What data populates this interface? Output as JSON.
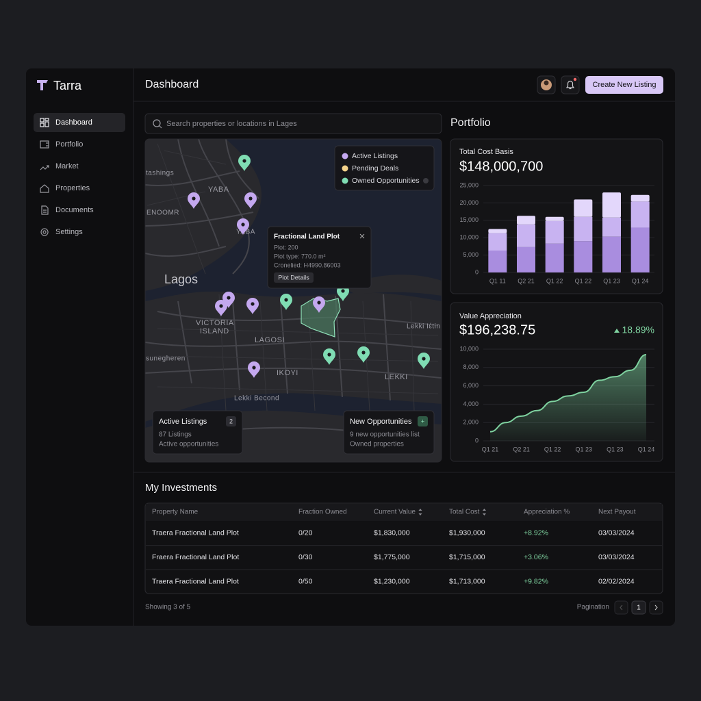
{
  "brand": "Tarra",
  "nav": [
    "Dashboard",
    "Portfolio",
    "Market",
    "Properties",
    "Documents",
    "Settings"
  ],
  "header": {
    "title": "Dashboard",
    "button": "Create New Listing"
  },
  "search": {
    "placeholder": "Search properties or locations in Lages"
  },
  "map": {
    "labels": [
      "tashings",
      "YABA",
      "ENOOMR",
      "YABA",
      "Lagos",
      "VICTORIA",
      "ISLAND",
      "LAGOSI",
      "sunegheren",
      "IKOYI",
      "LEKKI",
      "Lekki Becond",
      "Lekki Ιέtin"
    ],
    "legend": [
      {
        "label": "Active Listings",
        "color": "#c4a8ef"
      },
      {
        "label": "Pending Deals",
        "color": "#f3d28a"
      },
      {
        "label": "Owned Opportunities",
        "color": "#7fdcb3"
      }
    ],
    "popup": {
      "title": "Fractional Land Plot",
      "lines": [
        "Plot: 200",
        "Plot type: 770.0 m²",
        "Cronelied: H4990.86003"
      ],
      "button": "Plot Details"
    },
    "cards": [
      {
        "title": "Active Listings",
        "badge": "2",
        "lines": [
          "87 Listings",
          "Active opportunities"
        ]
      },
      {
        "title": "New Opportunities",
        "badge": "+",
        "lines": [
          "9 new opportunities list",
          "Owned properties"
        ]
      }
    ]
  },
  "portfolio_title": "Portfolio",
  "chart_data": [
    {
      "type": "bar",
      "title": "Total Cost Basis",
      "subtitle": "$148,000,700",
      "categories": [
        "Q1 11",
        "Q2 21",
        "Q1 22",
        "Q1 22",
        "Q1 23",
        "Q1 24"
      ],
      "series": [
        {
          "color": "#a98ddf",
          "values": [
            6300,
            7300,
            8300,
            9000,
            10300,
            12900
          ]
        },
        {
          "color": "#c8b3f1",
          "values": [
            5000,
            6500,
            6500,
            7000,
            5500,
            7500
          ]
        },
        {
          "color": "#e3d7fb",
          "values": [
            1200,
            2500,
            1200,
            5000,
            7200,
            1900
          ]
        }
      ],
      "stacked": true,
      "ylim": [
        0,
        25000
      ],
      "yticks": [
        0,
        {
          "value": 5000,
          "label": "5,000"
        },
        {
          "value": 10000,
          "label": "10,000"
        },
        {
          "value": 15000,
          "label": "15,000"
        },
        {
          "value": 20000,
          "label": "20,000"
        },
        {
          "value": 25000,
          "label": "25,000"
        }
      ],
      "grid": true
    },
    {
      "type": "area",
      "title": "Value Appreciation",
      "subtitle": "$196,238.75",
      "change": "18.89%",
      "categories": [
        "Q1 21",
        null,
        "Q2 21",
        null,
        "Q1 22",
        null,
        "Q1 23",
        null,
        "Q1 23",
        null,
        "Q1 24"
      ],
      "values": [
        1000,
        2000,
        2700,
        3300,
        4300,
        4900,
        5300,
        6600,
        7000,
        7700,
        9400
      ],
      "color": "#7fd3a0",
      "ylim": [
        0,
        10000
      ],
      "yticks": [
        0,
        {
          "value": 2000,
          "label": "2,000"
        },
        {
          "value": 4000,
          "label": "4,000"
        },
        {
          "value": 6000,
          "label": "6,000"
        },
        {
          "value": 8000,
          "label": "8,000"
        },
        {
          "value": 10000,
          "label": "10,000"
        }
      ],
      "grid": true
    }
  ],
  "investments": {
    "title": "My Investments",
    "columns": [
      "Property Name",
      "Fraction Owned",
      "Current Value",
      "Total Cost",
      "Appreciation %",
      "Next Payout"
    ],
    "rows": [
      [
        "Traera Fractional Land Plot",
        "0/20",
        "$1,830,000",
        "$1,930,000",
        "+8.92%",
        "03/03/2024"
      ],
      [
        "Fraera Fractional Land Plot",
        "0/30",
        "$1,775,000",
        "$1,715,000",
        "+3.06%",
        "03/03/2024"
      ],
      [
        "Traera Fractional Land Plot",
        "0/50",
        "$1,230,000",
        "$1,713,000",
        "+9.82%",
        "02/02/2024"
      ]
    ],
    "showing": "Showing 3 of 5",
    "pagination": "Pagination",
    "page": "1"
  }
}
